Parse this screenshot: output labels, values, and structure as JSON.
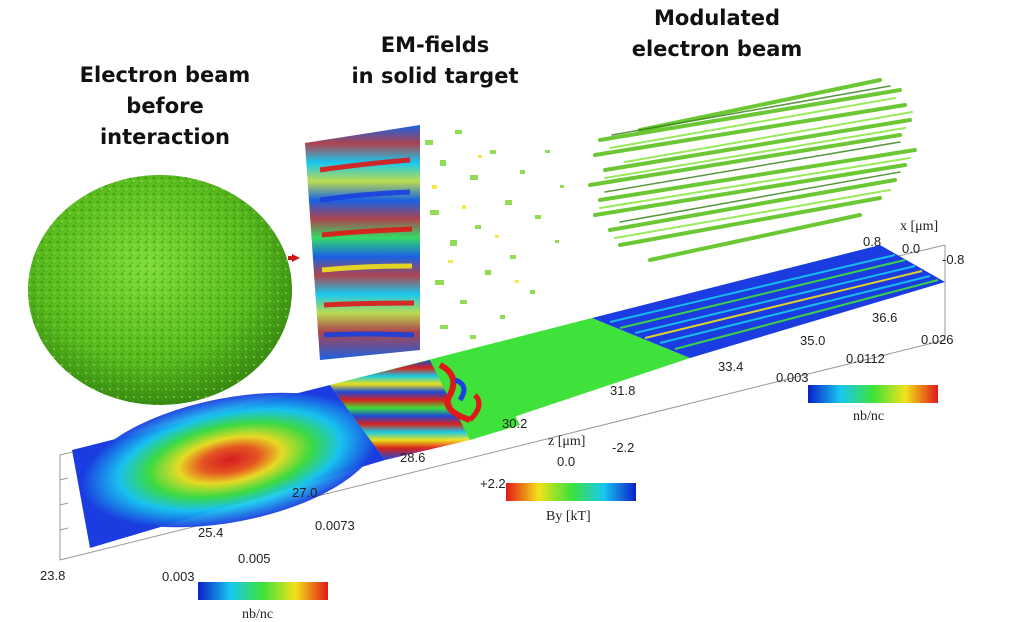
{
  "titles": {
    "left": [
      "Electron beam",
      "before",
      "interaction"
    ],
    "middle": [
      "EM-fields",
      "in solid target"
    ],
    "right": [
      "Modulated",
      "electron beam"
    ]
  },
  "axes": {
    "z_label": "z [μm]",
    "x_label": "x [μm]",
    "z_ticks": [
      "23.8",
      "25.4",
      "27.0",
      "28.6",
      "30.2",
      "31.8",
      "33.4",
      "35.0",
      "36.6"
    ],
    "x_ticks": [
      "0.8",
      "0.0",
      "-0.8"
    ]
  },
  "colorbars": {
    "density_left": {
      "ticks": [
        "0.003",
        "0.005",
        "0.0073"
      ],
      "label": "nb/nc"
    },
    "field": {
      "ticks": [
        "+2.2",
        "0.0",
        "-2.2"
      ],
      "label": "By [kT]"
    },
    "density_right": {
      "ticks": [
        "0.003",
        "0.0112",
        "0.026"
      ],
      "label": "nb/nc"
    }
  },
  "colors": {
    "jet_blue": "#0a2bd8",
    "jet_cyan": "#1ad6e6",
    "jet_green": "#38e03a",
    "jet_yellow": "#f2e21a",
    "jet_red": "#e8201c",
    "beam_green": "#5cc21e"
  }
}
